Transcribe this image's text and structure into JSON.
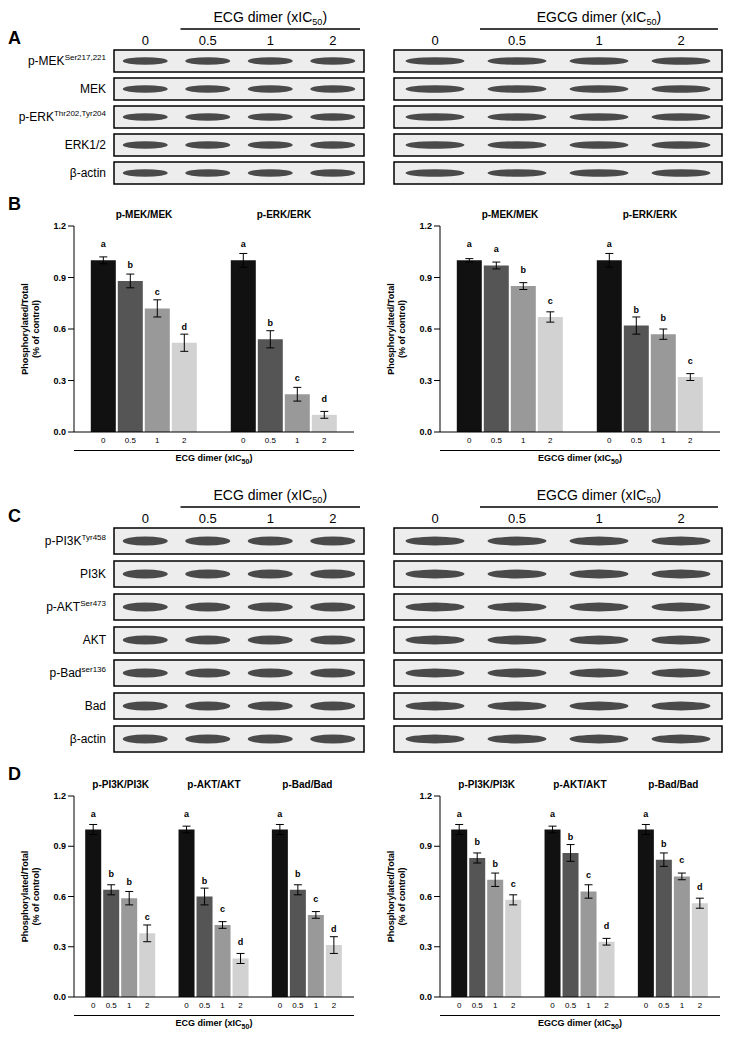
{
  "blots": [
    {
      "panel": "A",
      "groups": [
        {
          "title": {
            "text": "ECG dimer (xIC",
            "sub": "50",
            "tail": ")"
          },
          "lanes": [
            "0",
            "0.5",
            "1",
            "2"
          ]
        },
        {
          "title": {
            "text": "EGCG dimer (xIC",
            "sub": "50",
            "tail": ")"
          },
          "lanes": [
            "0",
            "0.5",
            "1",
            "2"
          ]
        }
      ],
      "rows": [
        {
          "name": "p-MEK",
          "sup": "Ser217,221"
        },
        {
          "name": "MEK"
        },
        {
          "name": "p-ERK",
          "sup": "Thr202,Tyr204"
        },
        {
          "name": "ERK1/2"
        },
        {
          "name": "β-actin"
        }
      ]
    },
    {
      "panel": "C",
      "groups": [
        {
          "title": {
            "text": "ECG dimer (xIC",
            "sub": "50",
            "tail": ")"
          },
          "lanes": [
            "0",
            "0.5",
            "1",
            "2"
          ]
        },
        {
          "title": {
            "text": "EGCG dimer (xIC",
            "sub": "50",
            "tail": ")"
          },
          "lanes": [
            "0",
            "0.5",
            "1",
            "2"
          ]
        }
      ],
      "rows": [
        {
          "name": "p-PI3K",
          "sup": "Tyr458"
        },
        {
          "name": "PI3K"
        },
        {
          "name": "p-AKT",
          "sup": "Ser473"
        },
        {
          "name": "AKT"
        },
        {
          "name": "p-Bad",
          "sup": "ser136"
        },
        {
          "name": "Bad"
        },
        {
          "name": "β-actin"
        }
      ]
    }
  ],
  "chart_data": [
    {
      "panel": "B",
      "type": "bar",
      "categories": [
        "p-MEK/MEK",
        "p-ERK/ERK"
      ],
      "ylabel": [
        "Phosphorylated/Total",
        "(% of control)"
      ],
      "xlabel": {
        "text": "ECG dimer (xIC",
        "sub": "50",
        "tail": ")"
      },
      "ylim": [
        0,
        1.2
      ],
      "yticks": [
        {
          "value": 0,
          "label": "0.0"
        },
        0.3,
        0.6,
        0.9,
        1.2
      ],
      "series": [
        {
          "name": "0",
          "color": "#111111",
          "values": [
            1.0,
            1.0
          ],
          "errors": [
            0.02,
            0.04
          ],
          "letters": [
            "a",
            "a"
          ]
        },
        {
          "name": "0.5",
          "color": "#555555",
          "values": [
            0.88,
            0.54
          ],
          "errors": [
            0.04,
            0.05
          ],
          "letters": [
            "b",
            "b"
          ]
        },
        {
          "name": "1",
          "color": "#999999",
          "values": [
            0.72,
            0.22
          ],
          "errors": [
            0.05,
            0.04
          ],
          "letters": [
            "c",
            "c"
          ]
        },
        {
          "name": "2",
          "color": "#d2d2d2",
          "values": [
            0.52,
            0.1
          ],
          "errors": [
            0.05,
            0.02
          ],
          "letters": [
            "d",
            "d"
          ]
        }
      ]
    },
    {
      "panel": "",
      "type": "bar",
      "categories": [
        "p-MEK/MEK",
        "p-ERK/ERK"
      ],
      "ylabel": [
        "Phosphorylated/Total",
        "(% of control)"
      ],
      "xlabel": {
        "text": "EGCG dimer (xIC",
        "sub": "50",
        "tail": ")"
      },
      "ylim": [
        0,
        1.2
      ],
      "yticks": [
        {
          "value": 0,
          "label": "0.0"
        },
        0.3,
        0.6,
        0.9,
        1.2
      ],
      "series": [
        {
          "name": "0",
          "color": "#111111",
          "values": [
            1.0,
            1.0
          ],
          "errors": [
            0.01,
            0.04
          ],
          "letters": [
            "a",
            "a"
          ]
        },
        {
          "name": "0.5",
          "color": "#555555",
          "values": [
            0.97,
            0.62
          ],
          "errors": [
            0.02,
            0.05
          ],
          "letters": [
            "a",
            "b"
          ]
        },
        {
          "name": "1",
          "color": "#999999",
          "values": [
            0.85,
            0.57
          ],
          "errors": [
            0.02,
            0.03
          ],
          "letters": [
            "b",
            "b"
          ]
        },
        {
          "name": "2",
          "color": "#d2d2d2",
          "values": [
            0.67,
            0.32
          ],
          "errors": [
            0.03,
            0.02
          ],
          "letters": [
            "c",
            "c"
          ]
        }
      ]
    },
    {
      "panel": "D",
      "type": "bar",
      "categories": [
        "p-PI3K/PI3K",
        "p-AKT/AKT",
        "p-Bad/Bad"
      ],
      "ylabel": [
        "Phosphorylated/Total",
        "(% of control)"
      ],
      "xlabel": {
        "text": "ECG dimer (xIC",
        "sub": "50",
        "tail": ")"
      },
      "ylim": [
        0,
        1.2
      ],
      "yticks": [
        {
          "value": 0,
          "label": "0.0"
        },
        0.3,
        0.6,
        0.9,
        1.2
      ],
      "series": [
        {
          "name": "0",
          "color": "#111111",
          "values": [
            1.0,
            1.0,
            1.0
          ],
          "errors": [
            0.03,
            0.02,
            0.03
          ],
          "letters": [
            "a",
            "a",
            "a"
          ]
        },
        {
          "name": "0.5",
          "color": "#555555",
          "values": [
            0.64,
            0.6,
            0.64
          ],
          "errors": [
            0.03,
            0.05,
            0.03
          ],
          "letters": [
            "b",
            "b",
            "b"
          ]
        },
        {
          "name": "1",
          "color": "#999999",
          "values": [
            0.59,
            0.43,
            0.49
          ],
          "errors": [
            0.04,
            0.02,
            0.02
          ],
          "letters": [
            "b",
            "c",
            "c"
          ]
        },
        {
          "name": "2",
          "color": "#d2d2d2",
          "values": [
            0.38,
            0.23,
            0.31
          ],
          "errors": [
            0.05,
            0.03,
            0.05
          ],
          "letters": [
            "c",
            "d",
            "d"
          ]
        }
      ]
    },
    {
      "panel": "",
      "type": "bar",
      "categories": [
        "p-PI3K/PI3K",
        "p-AKT/AKT",
        "p-Bad/Bad"
      ],
      "ylabel": [
        "Phosphorylated/Total",
        "(% of control)"
      ],
      "xlabel": {
        "text": "EGCG dimer (xIC",
        "sub": "50",
        "tail": ")"
      },
      "ylim": [
        0,
        1.2
      ],
      "yticks": [
        {
          "value": 0,
          "label": "0.0"
        },
        0.3,
        0.6,
        0.9,
        1.2
      ],
      "series": [
        {
          "name": "0",
          "color": "#111111",
          "values": [
            1.0,
            1.0,
            1.0
          ],
          "errors": [
            0.03,
            0.02,
            0.03
          ],
          "letters": [
            "a",
            "a",
            "a"
          ]
        },
        {
          "name": "0.5",
          "color": "#555555",
          "values": [
            0.83,
            0.86,
            0.82
          ],
          "errors": [
            0.03,
            0.05,
            0.04
          ],
          "letters": [
            "b",
            "b",
            "b"
          ]
        },
        {
          "name": "1",
          "color": "#999999",
          "values": [
            0.7,
            0.63,
            0.72
          ],
          "errors": [
            0.04,
            0.04,
            0.02
          ],
          "letters": [
            "b",
            "c",
            "c"
          ]
        },
        {
          "name": "2",
          "color": "#d2d2d2",
          "values": [
            0.58,
            0.33,
            0.56
          ],
          "errors": [
            0.03,
            0.02,
            0.03
          ],
          "letters": [
            "c",
            "d",
            "d"
          ]
        }
      ]
    }
  ]
}
